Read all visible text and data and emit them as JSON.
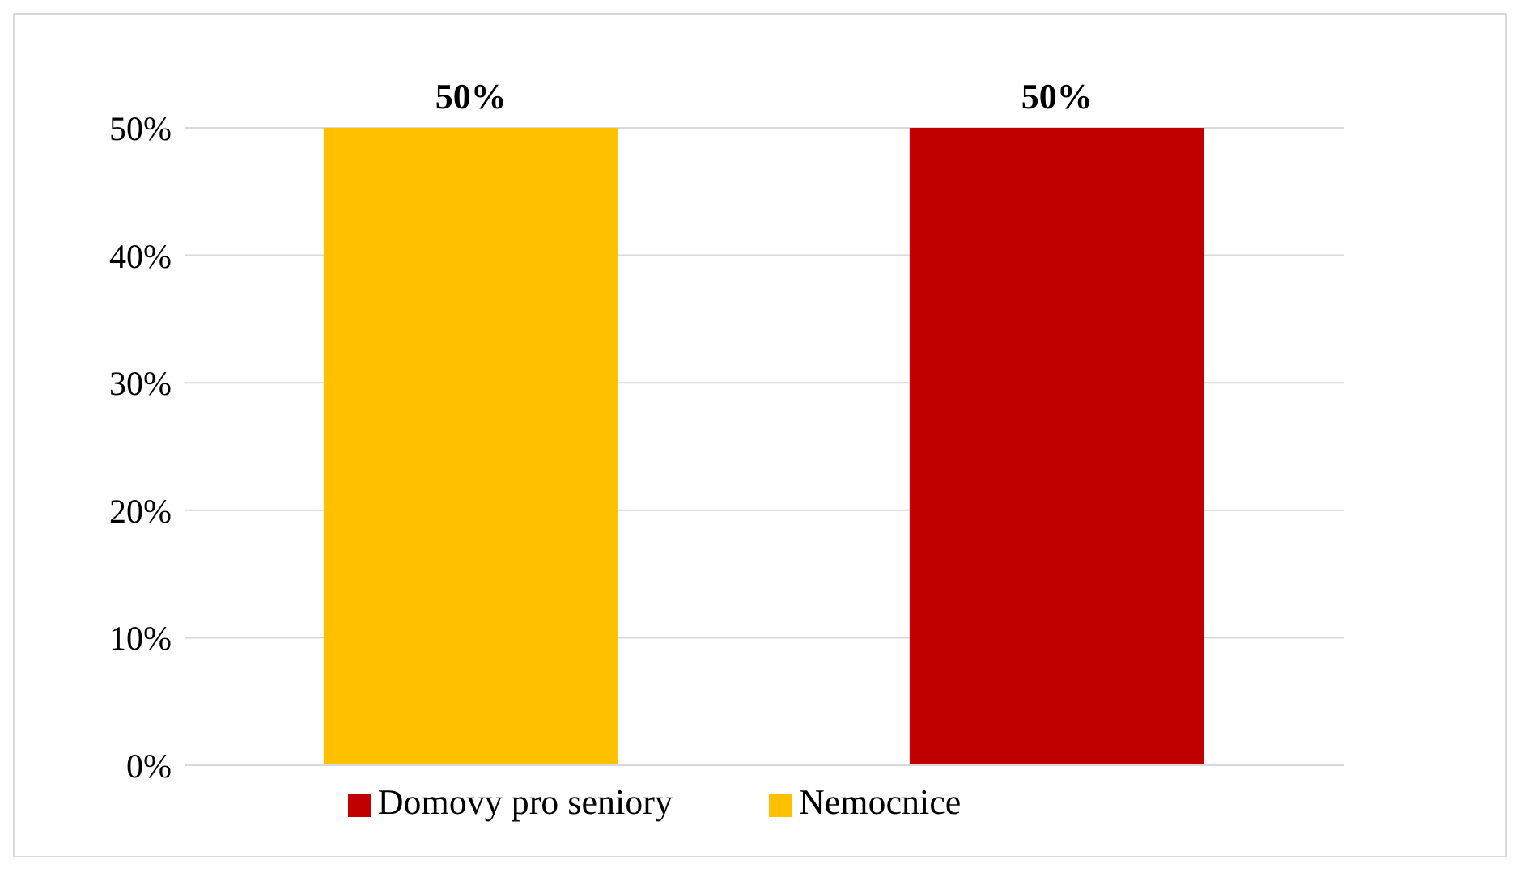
{
  "chart_data": {
    "type": "bar",
    "categories": [
      null
    ],
    "series": [
      {
        "name": "Nemocnice",
        "color": "#ffc000",
        "values": [
          50
        ],
        "value_labels": [
          "50%"
        ]
      },
      {
        "name": "Domovy pro seniory",
        "color": "#c00000",
        "values": [
          50
        ],
        "value_labels": [
          "50%"
        ]
      }
    ],
    "ylim": [
      0,
      50
    ],
    "yticks": [
      {
        "value": 0,
        "label": "0%"
      },
      {
        "value": 10,
        "label": "10%"
      },
      {
        "value": 20,
        "label": "20%"
      },
      {
        "value": 30,
        "label": "30%"
      },
      {
        "value": 40,
        "label": "40%"
      },
      {
        "value": 50,
        "label": "50%"
      }
    ],
    "grid": "y",
    "legend": "bottom"
  }
}
